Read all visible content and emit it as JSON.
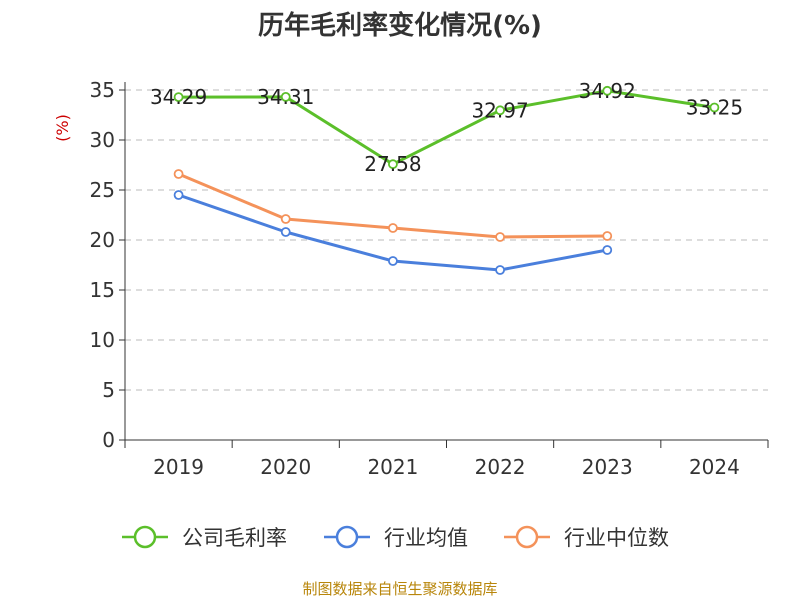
{
  "chart_data": {
    "type": "line",
    "title": "历年毛利率变化情况(%)",
    "ylabel": "(%)",
    "xlabel": "",
    "categories": [
      "2019",
      "2020",
      "2021",
      "2022",
      "2023",
      "2024"
    ],
    "ylim": [
      0,
      35
    ],
    "yticks": [
      0,
      5,
      10,
      15,
      20,
      25,
      30,
      35
    ],
    "grid": true,
    "legend_position": "bottom",
    "series": [
      {
        "name": "公司毛利率",
        "color": "#5bbf2a",
        "values": [
          34.29,
          34.31,
          27.58,
          32.97,
          34.92,
          33.25
        ],
        "labels": [
          "34.29",
          "34.31",
          "27.58",
          "32.97",
          "34.92",
          "33.25"
        ]
      },
      {
        "name": "行业均值",
        "color": "#4a7fdc",
        "values": [
          24.5,
          20.8,
          17.9,
          17.0,
          19.0,
          null
        ]
      },
      {
        "name": "行业中位数",
        "color": "#f4925a",
        "values": [
          26.6,
          22.1,
          21.2,
          20.3,
          20.4,
          null
        ]
      }
    ]
  },
  "source_text": "制图数据来自恒生聚源数据库"
}
